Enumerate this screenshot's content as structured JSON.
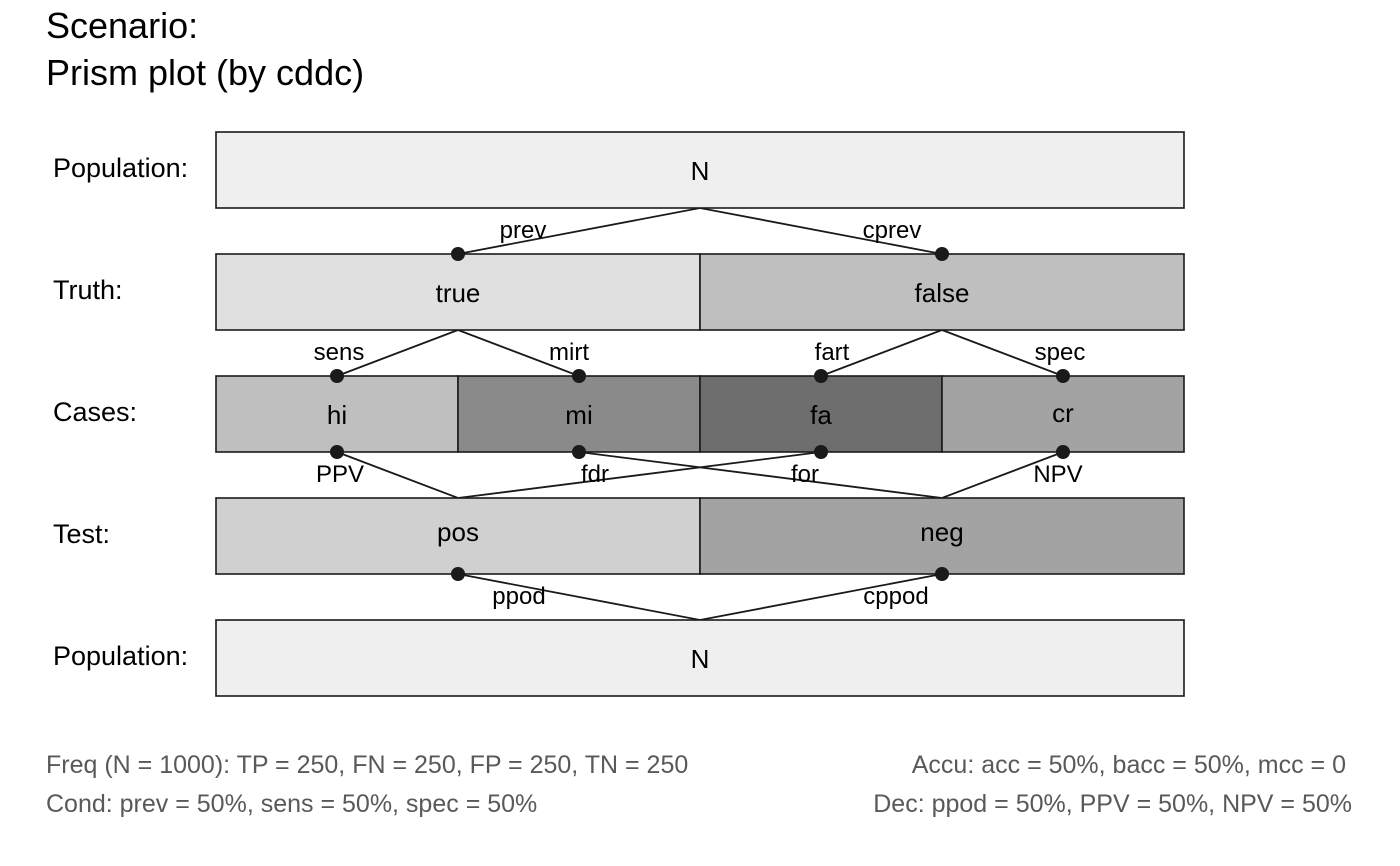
{
  "title": {
    "line1": "Scenario:",
    "line2": "Prism plot (by cddc)"
  },
  "rows": {
    "population_top": "Population:",
    "truth": "Truth:",
    "cases": "Cases:",
    "test": "Test:",
    "population_bottom": "Population:"
  },
  "boxes": {
    "n_top": "N",
    "true": "true",
    "false": "false",
    "hi": "hi",
    "mi": "mi",
    "fa": "fa",
    "cr": "cr",
    "pos": "pos",
    "neg": "neg",
    "n_bottom": "N"
  },
  "edges": {
    "prev": "prev",
    "cprev": "cprev",
    "sens": "sens",
    "mirt": "mirt",
    "fart": "fart",
    "spec": "spec",
    "ppv": "PPV",
    "fdr": "fdr",
    "for": "for",
    "npv": "NPV",
    "ppod": "ppod",
    "cppod": "cppod"
  },
  "footer": {
    "freq": "Freq (N = 1000):  TP = 250, FN = 250, FP = 250, TN = 250",
    "cond": "Cond:  prev = 50%, sens = 50%, spec = 50%",
    "accu": "Accu:  acc = 50%, bacc = 50%, mcc = 0",
    "dec": "Dec:  ppod = 50%, PPV = 50%, NPV = 50%"
  },
  "colors": {
    "n": "#efefef",
    "true": "#e0e0e0",
    "false": "#bfbfbf",
    "hi": "#bfbfbf",
    "mi": "#8a8a8a",
    "fa": "#6e6e6e",
    "cr": "#a3a3a3",
    "pos": "#d0d0d0",
    "neg": "#a3a3a3"
  }
}
